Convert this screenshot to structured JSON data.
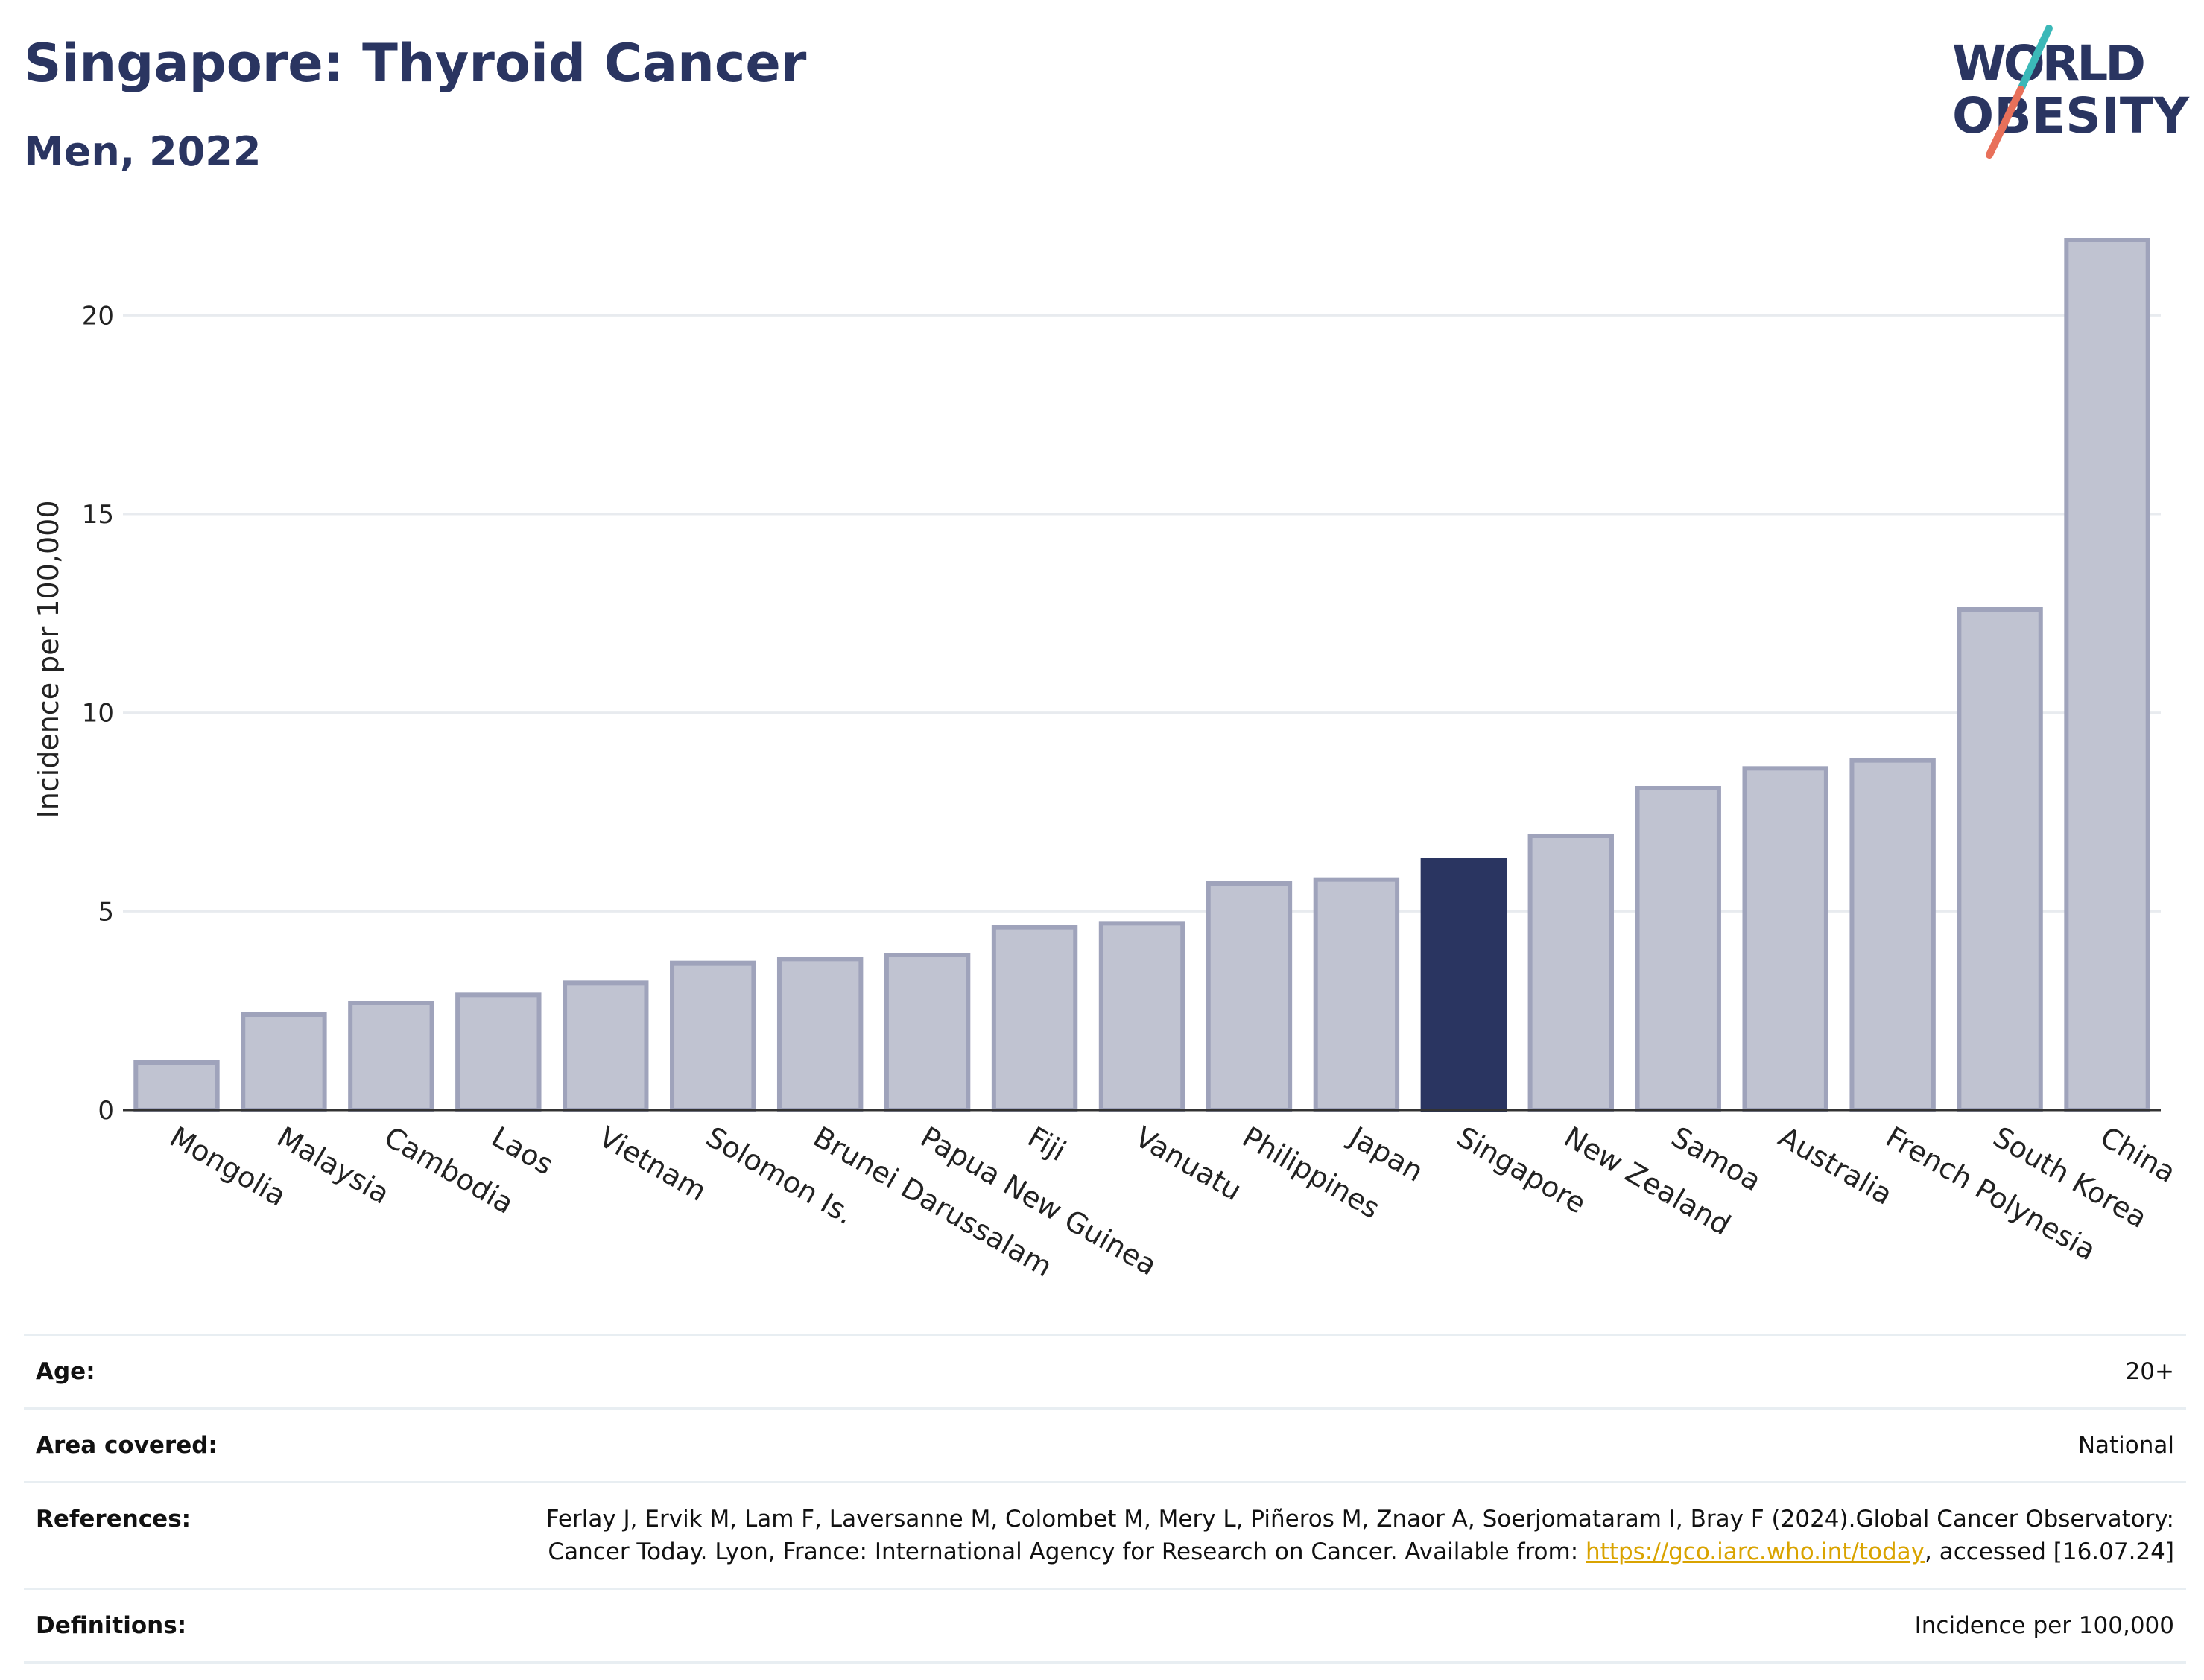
{
  "header": {
    "title": "Singapore: Thyroid Cancer",
    "subtitle": "Men, 2022"
  },
  "logo": {
    "line1": "WORLD",
    "line2": "OBESITY",
    "colors": {
      "text": "#2a3561",
      "slash_top": "#3bb8b8",
      "slash_bottom": "#e8705a"
    }
  },
  "colors": {
    "bar_default": "#c0c3d1",
    "bar_border": "#9fa3bb",
    "bar_highlight": "#2a3561",
    "grid": "#e8ebef",
    "axis": "#333333"
  },
  "chart_data": {
    "type": "bar",
    "ylabel": "Incidence per 100,000",
    "xlabel": "",
    "ylim": [
      0,
      22.5
    ],
    "yticks": [
      0,
      5,
      10,
      15,
      20
    ],
    "grid": true,
    "highlight": "Singapore",
    "categories": [
      "Mongolia",
      "Malaysia",
      "Cambodia",
      "Laos",
      "Vietnam",
      "Solomon Is.",
      "Brunei Darussalam",
      "Papua New Guinea",
      "Fiji",
      "Vanuatu",
      "Philippines",
      "Japan",
      "Singapore",
      "New Zealand",
      "Samoa",
      "Australia",
      "French Polynesia",
      "South Korea",
      "China"
    ],
    "values": [
      1.2,
      2.4,
      2.7,
      2.9,
      3.2,
      3.7,
      3.8,
      3.9,
      4.6,
      4.7,
      5.7,
      5.8,
      6.3,
      6.9,
      8.1,
      8.6,
      8.8,
      12.6,
      21.9
    ]
  },
  "meta": {
    "age_label": "Age:",
    "age_value": "20+",
    "area_label": "Area covered:",
    "area_value": "National",
    "ref_label": "References:",
    "ref_text": "Ferlay J, Ervik M, Lam F, Laversanne M, Colombet M, Mery L, Piñeros M, Znaor A, Soerjomataram I, Bray F (2024).Global Cancer Observatory: Cancer Today. Lyon, France: International Agency for Research on Cancer. Available from: ",
    "ref_link": "https://gco.iarc.who.int/today",
    "ref_tail": ", accessed [16.07.24]",
    "def_label": "Definitions:",
    "def_value": "Incidence per 100,000"
  }
}
